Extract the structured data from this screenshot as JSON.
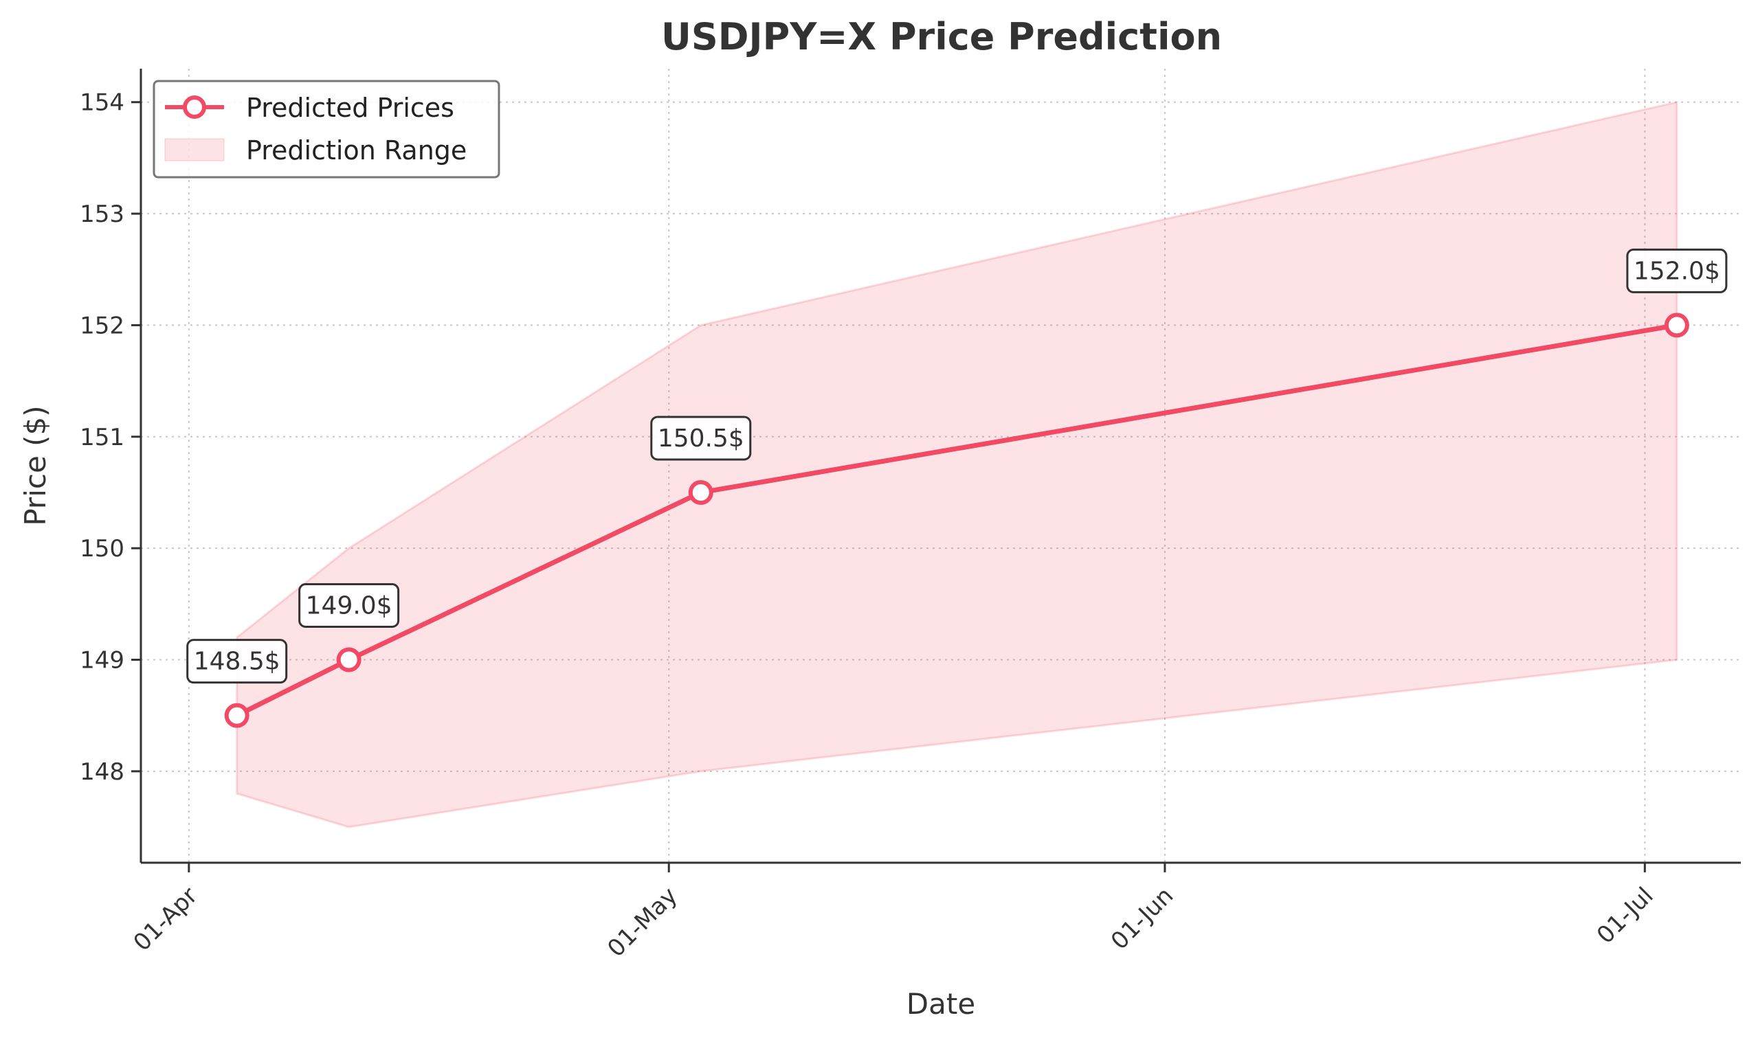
{
  "chart_data": {
    "type": "line",
    "title": "USDJPY=X Price Prediction",
    "xlabel": "Date",
    "ylabel": "Price ($)",
    "x_ticks": [
      {
        "date": "2024-04-01",
        "label": "01-Apr"
      },
      {
        "date": "2024-05-01",
        "label": "01-May"
      },
      {
        "date": "2024-06-01",
        "label": "01-Jun"
      },
      {
        "date": "2024-07-01",
        "label": "01-Jul"
      }
    ],
    "xlim": [
      "2024-03-29",
      "2024-07-07"
    ],
    "ylim": [
      147.18,
      154.3
    ],
    "y_ticks": [
      148,
      149,
      150,
      151,
      152,
      153,
      154
    ],
    "series": [
      {
        "name": "Predicted Prices",
        "color": "#f24a64",
        "points": [
          {
            "x": "2024-04-04",
            "y": 148.5,
            "label": "148.5$"
          },
          {
            "x": "2024-04-11",
            "y": 149.0,
            "label": "149.0$"
          },
          {
            "x": "2024-05-03",
            "y": 150.5,
            "label": "150.5$"
          },
          {
            "x": "2024-07-03",
            "y": 152.0,
            "label": "152.0$"
          }
        ]
      }
    ],
    "range": {
      "name": "Prediction Range",
      "color": "#f24a64",
      "points": [
        {
          "x": "2024-04-04",
          "low": 147.8,
          "high": 149.2
        },
        {
          "x": "2024-04-11",
          "low": 147.5,
          "high": 150.0
        },
        {
          "x": "2024-05-03",
          "low": 148.0,
          "high": 152.0
        },
        {
          "x": "2024-07-03",
          "low": 149.0,
          "high": 154.0
        }
      ]
    },
    "grid": true,
    "legend_position": "top-left"
  }
}
